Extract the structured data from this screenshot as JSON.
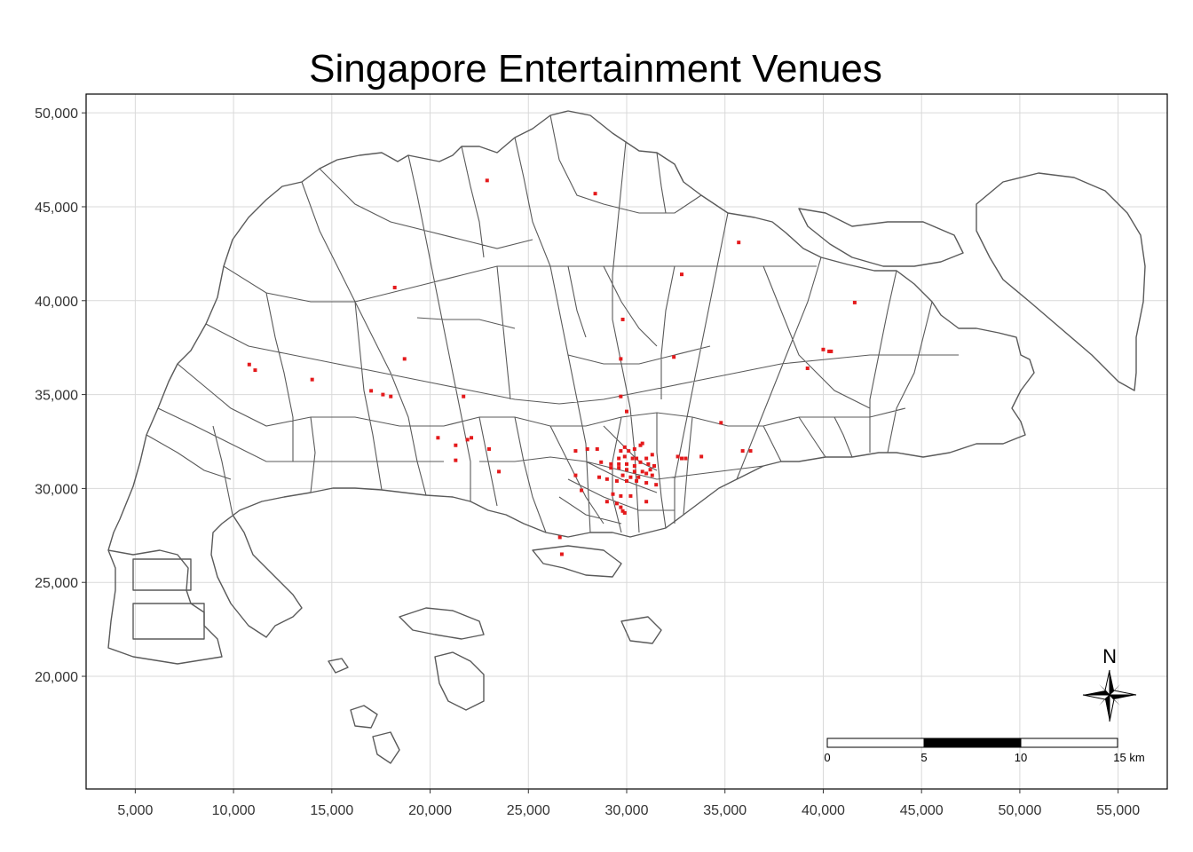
{
  "chart_data": {
    "type": "scatter",
    "title": "Singapore Entertainment Venues",
    "xlim": [
      2500,
      57500
    ],
    "ylim": [
      14000,
      51000
    ],
    "x_ticks": [
      "5,000",
      "10,000",
      "15,000",
      "20,000",
      "25,000",
      "30,000",
      "35,000",
      "40,000",
      "45,000",
      "50,000",
      "55,000"
    ],
    "x_tick_values": [
      5000,
      10000,
      15000,
      20000,
      25000,
      30000,
      35000,
      40000,
      45000,
      50000,
      55000
    ],
    "y_ticks": [
      "20,000",
      "25,000",
      "30,000",
      "35,000",
      "40,000",
      "45,000",
      "50,000"
    ],
    "y_tick_values": [
      20000,
      25000,
      30000,
      35000,
      40000,
      45000,
      50000
    ],
    "grid": true,
    "colors": {
      "venue": "#e41a1c",
      "boundary": "#5a5a5a",
      "grid": "#d9d9d9"
    },
    "venues": [
      [
        22900,
        46400
      ],
      [
        28400,
        45700
      ],
      [
        35700,
        43100
      ],
      [
        32800,
        41400
      ],
      [
        18200,
        40700
      ],
      [
        41600,
        39900
      ],
      [
        29800,
        39000
      ],
      [
        40000,
        37400
      ],
      [
        40300,
        37300
      ],
      [
        40400,
        37300
      ],
      [
        29700,
        36900
      ],
      [
        32400,
        37000
      ],
      [
        18700,
        36900
      ],
      [
        10800,
        36600
      ],
      [
        11100,
        36300
      ],
      [
        39200,
        36400
      ],
      [
        14000,
        35800
      ],
      [
        17000,
        35200
      ],
      [
        17600,
        35000
      ],
      [
        18000,
        34900
      ],
      [
        21700,
        34900
      ],
      [
        29700,
        34900
      ],
      [
        30000,
        34100
      ],
      [
        34800,
        33500
      ],
      [
        20400,
        32700
      ],
      [
        21900,
        32600
      ],
      [
        22100,
        32700
      ],
      [
        21300,
        32300
      ],
      [
        23000,
        32100
      ],
      [
        28000,
        32100
      ],
      [
        28500,
        32100
      ],
      [
        27400,
        32000
      ],
      [
        29700,
        32000
      ],
      [
        29900,
        32200
      ],
      [
        30100,
        32000
      ],
      [
        30400,
        32100
      ],
      [
        30700,
        32300
      ],
      [
        30800,
        32400
      ],
      [
        35900,
        32000
      ],
      [
        36300,
        32000
      ],
      [
        29600,
        31600
      ],
      [
        29900,
        31700
      ],
      [
        30300,
        31600
      ],
      [
        30500,
        31600
      ],
      [
        31000,
        31600
      ],
      [
        31300,
        31800
      ],
      [
        32600,
        31700
      ],
      [
        32800,
        31600
      ],
      [
        33000,
        31600
      ],
      [
        33800,
        31700
      ],
      [
        21300,
        31500
      ],
      [
        28700,
        31400
      ],
      [
        29200,
        31300
      ],
      [
        29600,
        31300
      ],
      [
        30000,
        31300
      ],
      [
        30400,
        31200
      ],
      [
        30700,
        31400
      ],
      [
        31100,
        31300
      ],
      [
        31400,
        31200
      ],
      [
        29200,
        31100
      ],
      [
        29600,
        31100
      ],
      [
        30000,
        31000
      ],
      [
        30400,
        30900
      ],
      [
        30800,
        30900
      ],
      [
        31200,
        31000
      ],
      [
        23500,
        30900
      ],
      [
        29800,
        30700
      ],
      [
        30200,
        30600
      ],
      [
        30600,
        30600
      ],
      [
        31000,
        30800
      ],
      [
        31300,
        30700
      ],
      [
        27400,
        30700
      ],
      [
        28600,
        30600
      ],
      [
        29000,
        30500
      ],
      [
        29500,
        30400
      ],
      [
        30000,
        30400
      ],
      [
        30500,
        30400
      ],
      [
        31000,
        30300
      ],
      [
        31500,
        30200
      ],
      [
        27700,
        29900
      ],
      [
        29300,
        29700
      ],
      [
        29700,
        29600
      ],
      [
        30200,
        29600
      ],
      [
        29000,
        29300
      ],
      [
        29500,
        29200
      ],
      [
        31000,
        29300
      ],
      [
        29700,
        29000
      ],
      [
        29800,
        28800
      ],
      [
        29900,
        28700
      ],
      [
        26600,
        27400
      ],
      [
        26700,
        26500
      ]
    ],
    "scale_bar": {
      "labels": [
        "0",
        "5",
        "10",
        "15 km"
      ]
    },
    "north_arrow": {
      "label": "N"
    }
  }
}
